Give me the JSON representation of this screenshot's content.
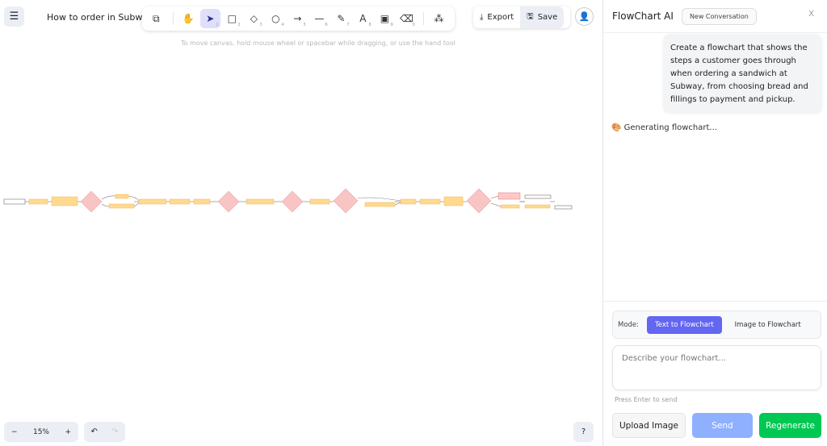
{
  "header": {
    "title": "How to order in Subway",
    "hint": "To move canvas, hold mouse wheel or spacebar while dragging, or use the hand tool",
    "export_label": "Export",
    "save_label": "Save"
  },
  "toolbar": {
    "tools": [
      {
        "name": "lock",
        "glyph": "⧉",
        "key": ""
      },
      {
        "name": "hand",
        "glyph": "✋",
        "key": ""
      },
      {
        "name": "select",
        "glyph": "➤",
        "key": "1",
        "active": true
      },
      {
        "name": "rectangle",
        "glyph": "□",
        "key": "2"
      },
      {
        "name": "diamond",
        "glyph": "◇",
        "key": "3"
      },
      {
        "name": "ellipse",
        "glyph": "○",
        "key": "4"
      },
      {
        "name": "arrow",
        "glyph": "→",
        "key": "5"
      },
      {
        "name": "line",
        "glyph": "—",
        "key": "6"
      },
      {
        "name": "pencil",
        "glyph": "✎",
        "key": "7"
      },
      {
        "name": "text",
        "glyph": "A",
        "key": "8"
      },
      {
        "name": "image",
        "glyph": "▣",
        "key": "9"
      },
      {
        "name": "eraser",
        "glyph": "⌫",
        "key": "0"
      },
      {
        "name": "shapes",
        "glyph": "⁂",
        "key": ""
      }
    ]
  },
  "zoom": {
    "level": "15%",
    "minus": "−",
    "plus": "+"
  },
  "undo": {
    "undo": "↶",
    "redo": "↷"
  },
  "help": "?",
  "colors": {
    "process": "#ffd98e",
    "decision": "#f8c4c4",
    "error": "#ffc9c9",
    "terminal": "#ffffff",
    "accent": "#6366f1",
    "regenerate": "#00c853",
    "send": "#8fb0ff"
  },
  "panel": {
    "title": "FlowChart AI",
    "new_conversation": "New Conversation",
    "close": "X",
    "user_message": "Create a flowchart that shows the steps a customer goes through when ordering a sandwich at Subway, from choosing bread and fillings to payment and pickup.",
    "status": "🎨 Generating flowchart...",
    "mode_label": "Mode:",
    "mode_text": "Text to Flowchart",
    "mode_image": "Image to Flowchart",
    "input_placeholder": "Describe your flowchart...",
    "enter_hint": "Press Enter to send",
    "upload": "Upload Image",
    "send": "Send",
    "regenerate": "Regenerate"
  }
}
